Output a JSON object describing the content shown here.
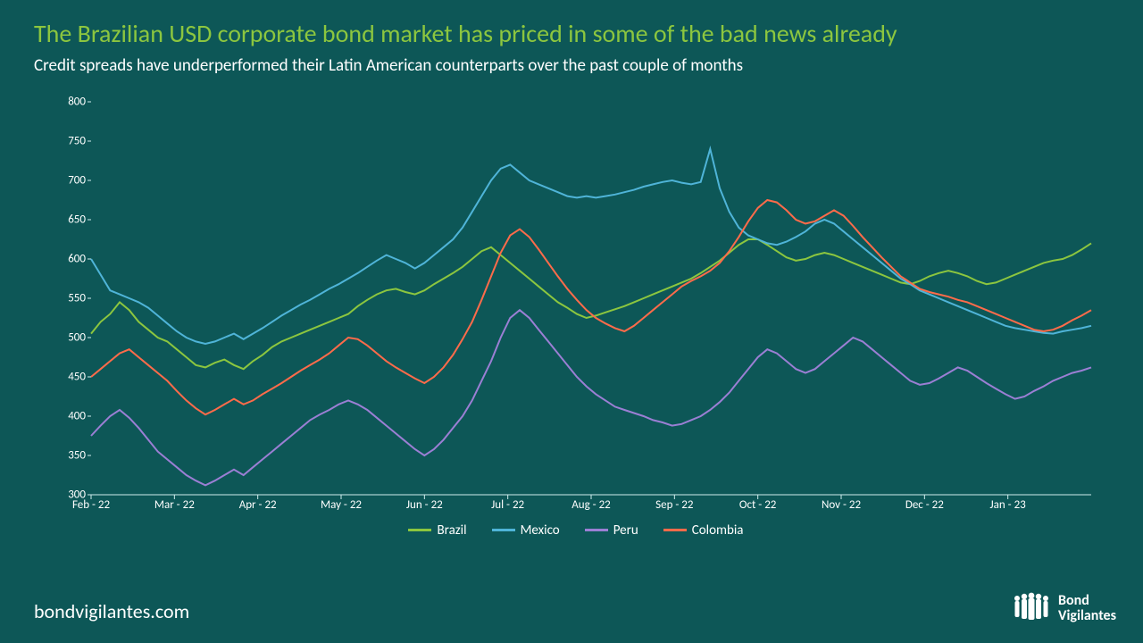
{
  "title": "The Brazilian USD corporate bond market has priced in some of the bad news already",
  "subtitle": "Credit spreads have underperformed their Latin American counterparts over the past couple of months",
  "footer_url": "bondvigilantes.com",
  "logo": {
    "line1": "Bond",
    "line2": "Vigilantes"
  },
  "chart": {
    "type": "line",
    "background_color": "#0d5757",
    "title_color": "#8cc63f",
    "text_color": "#ffffff",
    "axis_color": "#cfeeee",
    "title_fontsize": 28,
    "subtitle_fontsize": 19,
    "tick_fontsize": 13,
    "legend_fontsize": 15,
    "line_width": 2,
    "ylim": [
      300,
      800
    ],
    "ytick_step": 50,
    "y_ticks": [
      300,
      350,
      400,
      450,
      500,
      550,
      600,
      650,
      700,
      750,
      800
    ],
    "x_labels": [
      "Feb - 22",
      "Mar - 22",
      "Apr - 22",
      "May - 22",
      "Jun - 22",
      "Jul - 22",
      "Aug - 22",
      "Sep - 22",
      "Oct - 22",
      "Nov - 22",
      "Dec - 22",
      "Jan - 23"
    ],
    "series": [
      {
        "name": "Brazil",
        "color": "#8cc63f",
        "values": [
          505,
          520,
          530,
          545,
          535,
          520,
          510,
          500,
          495,
          485,
          475,
          465,
          462,
          468,
          472,
          465,
          460,
          470,
          478,
          488,
          495,
          500,
          505,
          510,
          515,
          520,
          525,
          530,
          540,
          548,
          555,
          560,
          562,
          558,
          555,
          560,
          568,
          575,
          582,
          590,
          600,
          610,
          615,
          605,
          595,
          585,
          575,
          565,
          555,
          545,
          538,
          530,
          525,
          528,
          532,
          536,
          540,
          545,
          550,
          555,
          560,
          565,
          570,
          575,
          582,
          590,
          598,
          608,
          618,
          625,
          625,
          618,
          610,
          602,
          598,
          600,
          605,
          608,
          605,
          600,
          595,
          590,
          585,
          580,
          575,
          570,
          568,
          572,
          578,
          582,
          585,
          582,
          578,
          572,
          568,
          570,
          575,
          580,
          585,
          590,
          595,
          598,
          600,
          605,
          612,
          620
        ]
      },
      {
        "name": "Mexico",
        "color": "#4fb4d8",
        "values": [
          600,
          580,
          560,
          555,
          550,
          545,
          538,
          528,
          518,
          508,
          500,
          495,
          492,
          495,
          500,
          505,
          498,
          505,
          512,
          520,
          528,
          535,
          542,
          548,
          555,
          562,
          568,
          575,
          582,
          590,
          598,
          605,
          600,
          595,
          588,
          595,
          605,
          615,
          625,
          640,
          660,
          680,
          700,
          715,
          720,
          710,
          700,
          695,
          690,
          685,
          680,
          678,
          680,
          678,
          680,
          682,
          685,
          688,
          692,
          695,
          698,
          700,
          697,
          695,
          698,
          740,
          690,
          660,
          640,
          630,
          625,
          620,
          618,
          622,
          628,
          635,
          645,
          650,
          645,
          635,
          625,
          615,
          605,
          595,
          585,
          575,
          568,
          560,
          555,
          550,
          545,
          540,
          535,
          530,
          525,
          520,
          515,
          512,
          510,
          508,
          506,
          505,
          508,
          510,
          512,
          515
        ]
      },
      {
        "name": "Peru",
        "color": "#9b7fd4",
        "values": [
          375,
          388,
          400,
          408,
          398,
          385,
          370,
          355,
          345,
          335,
          325,
          318,
          312,
          318,
          325,
          332,
          325,
          335,
          345,
          355,
          365,
          375,
          385,
          395,
          402,
          408,
          415,
          420,
          415,
          408,
          398,
          388,
          378,
          368,
          358,
          350,
          358,
          370,
          385,
          400,
          420,
          445,
          470,
          500,
          525,
          535,
          525,
          510,
          495,
          480,
          465,
          450,
          438,
          428,
          420,
          412,
          408,
          404,
          400,
          395,
          392,
          388,
          390,
          395,
          400,
          408,
          418,
          430,
          445,
          460,
          475,
          485,
          480,
          470,
          460,
          455,
          460,
          470,
          480,
          490,
          500,
          495,
          485,
          475,
          465,
          455,
          445,
          440,
          442,
          448,
          455,
          462,
          458,
          450,
          442,
          435,
          428,
          422,
          425,
          432,
          438,
          445,
          450,
          455,
          458,
          462
        ]
      },
      {
        "name": "Colombia",
        "color": "#ff6b4a",
        "values": [
          450,
          460,
          470,
          480,
          485,
          475,
          465,
          455,
          445,
          432,
          420,
          410,
          402,
          408,
          415,
          422,
          415,
          420,
          428,
          435,
          442,
          450,
          458,
          465,
          472,
          480,
          490,
          500,
          498,
          490,
          480,
          470,
          462,
          455,
          448,
          442,
          450,
          462,
          478,
          498,
          520,
          548,
          578,
          608,
          630,
          638,
          628,
          612,
          595,
          578,
          562,
          548,
          535,
          525,
          518,
          512,
          508,
          515,
          525,
          535,
          545,
          555,
          565,
          572,
          578,
          585,
          595,
          610,
          628,
          648,
          665,
          675,
          672,
          662,
          650,
          645,
          648,
          655,
          662,
          655,
          642,
          628,
          615,
          602,
          590,
          578,
          570,
          562,
          558,
          555,
          552,
          548,
          545,
          540,
          535,
          530,
          525,
          520,
          515,
          510,
          508,
          510,
          515,
          522,
          528,
          535
        ]
      }
    ]
  }
}
